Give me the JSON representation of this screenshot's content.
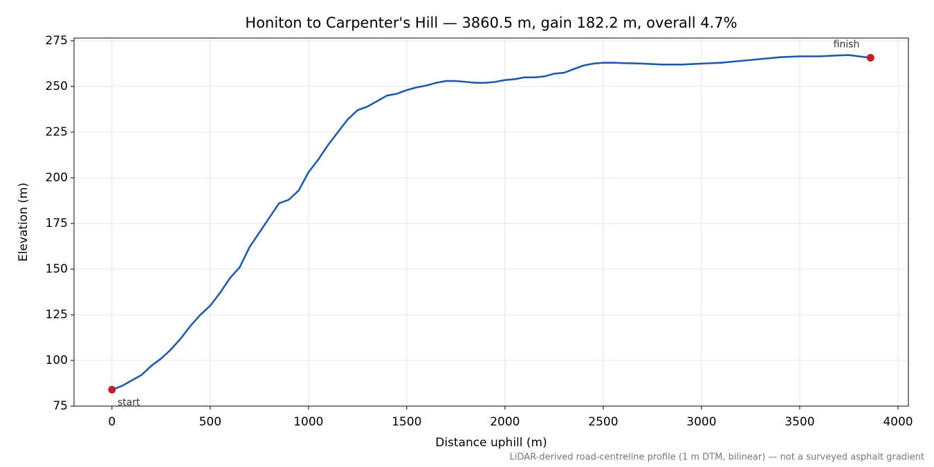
{
  "chart_data": {
    "type": "line",
    "title": "Honiton to Carpenter's Hill — 3860.5 m, gain 182.2 m, overall 4.7%",
    "xlabel": "Distance uphill (m)",
    "ylabel": "Elevation (m)",
    "footnote": "LiDAR-derived road-centreline profile (1 m DTM, bilinear) — not a surveyed asphalt gradient",
    "x": [
      0,
      50,
      100,
      150,
      200,
      250,
      300,
      350,
      400,
      450,
      500,
      550,
      600,
      650,
      700,
      750,
      800,
      850,
      900,
      950,
      1000,
      1050,
      1100,
      1150,
      1200,
      1250,
      1300,
      1350,
      1400,
      1450,
      1500,
      1550,
      1600,
      1650,
      1700,
      1750,
      1800,
      1850,
      1900,
      1950,
      2000,
      2050,
      2100,
      2150,
      2200,
      2250,
      2300,
      2350,
      2400,
      2450,
      2500,
      2550,
      2600,
      2700,
      2800,
      2900,
      3000,
      3100,
      3200,
      3300,
      3400,
      3500,
      3600,
      3700,
      3750,
      3800,
      3860.5
    ],
    "values": [
      84,
      86,
      89,
      92,
      97,
      101,
      106,
      112,
      119,
      125,
      130,
      137,
      145,
      151,
      162,
      170,
      178,
      186,
      188,
      193,
      203,
      210,
      218,
      225,
      232,
      237,
      239,
      242,
      245,
      246,
      248,
      249.5,
      250.5,
      252,
      253,
      253,
      252.5,
      252,
      252,
      252.5,
      253.5,
      254,
      255,
      255,
      255.5,
      257,
      257.5,
      259.5,
      261.5,
      262.5,
      263,
      263,
      262.8,
      262.5,
      262,
      262,
      262.5,
      263,
      264,
      265,
      266,
      266.5,
      266.5,
      267,
      267.2,
      266.5,
      265.7
    ],
    "color": "#1f5aa8",
    "points": [
      {
        "label": "start",
        "x": 0,
        "y": 84
      },
      {
        "label": "finish",
        "x": 3860.5,
        "y": 265.7
      }
    ],
    "point_color": "#c0202b",
    "xlim": [
      -193,
      4053
    ],
    "ylim": [
      75,
      276.5
    ],
    "xticks": [
      0,
      500,
      1000,
      1500,
      2000,
      2500,
      3000,
      3500,
      4000
    ],
    "yticks": [
      75,
      100,
      125,
      150,
      175,
      200,
      225,
      250,
      275
    ],
    "grid": true
  }
}
